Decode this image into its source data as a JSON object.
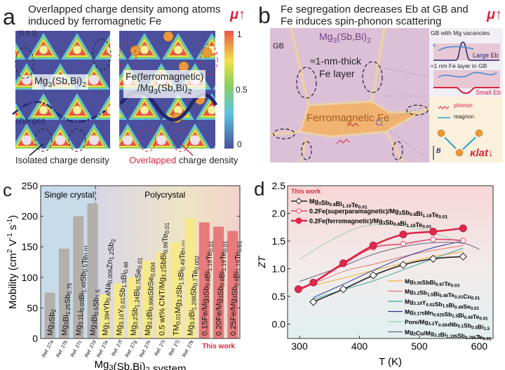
{
  "panel_a": {
    "letter": "a",
    "title_line1": "Overlapped charge density among atoms",
    "title_line2": "induced by ferromagnetic Fe",
    "mu_label": "μ↑",
    "direction": "[0 0 1]",
    "left_label": "Mg3(Sb,Bi)2",
    "right_label_line1": "Fe(ferromagnetic)",
    "right_label_line2": "/Mg3(Sb,Bi)2",
    "charges_label": "charges",
    "colorbar_ticks": [
      "1",
      "0.5",
      "0"
    ],
    "caption_left": "Isolated charge density",
    "caption_right_highlight": "Overlapped",
    "caption_right_rest": " charge density",
    "colors": {
      "background": "#4b4f9c",
      "high": "#e8564a",
      "accent": "#d8243c"
    }
  },
  "panel_b": {
    "letter": "b",
    "title_line1": "Fe segregation decreases Eb at GB and",
    "title_line2": "Fe induces spin-phonon scattering",
    "mu_label": "μ↑",
    "matrix_label": "Mg3(Sb,Bi)2",
    "gb_label": "GB",
    "layer_label_line1": "≈1-nm-thick",
    "layer_label_line2": "Fe layer",
    "fe_label": "Ferromagnetic Fe",
    "inset1_title": "GB with Mg vacancies",
    "inset1_eb": "Large Eb",
    "inset2_title": "≈1 nm Fe layer in GB",
    "inset2_eb": "Small Eb",
    "electron_label": "e",
    "phonon_label": "phonon",
    "magnon_label": "magnon",
    "field_label": "B",
    "klat_label": "κlat↓"
  },
  "chart_data": [
    {
      "panel": "c",
      "type": "bar",
      "ylabel": "Mobility (cm2 V-1 s-1)",
      "xlabel": "Mg3(Sb,Bi)2 system",
      "ylim": [
        0,
        250
      ],
      "yticks": [
        0,
        50,
        100,
        150,
        200,
        250
      ],
      "grid": false,
      "regions": [
        {
          "label": "Single crystal",
          "from": 0,
          "to": 3,
          "color": "#c8dbe8"
        },
        {
          "label": "Polycrystal",
          "from": 4,
          "to": 13,
          "color": "#ece4c8"
        }
      ],
      "categories": [
        {
          "formula": "Mg3Sb2",
          "ref": "Ref. 27a",
          "value": 75,
          "group": "single"
        },
        {
          "formula": "Mg3Bi1.25Sb0.75",
          "ref": "Ref. 27b",
          "value": 147,
          "group": "single"
        },
        {
          "formula": "Mg3.1Li0.03Bi1.49Sb0.5Te0.01",
          "ref": "Ref. 27c",
          "value": 200,
          "group": "single"
        },
        {
          "formula": "Mg3Bi0.5Sb1.5",
          "ref": "Ref. 27d",
          "value": 221,
          "group": "single"
        },
        {
          "formula": "Mg1.394Yb0.4Na0.006Zn1.2Sb2",
          "ref": "Ref. 27e",
          "value": 72,
          "group": "poly"
        },
        {
          "formula": "Mg3.16Y0.01Sb1.5Bi0.48",
          "ref": "Ref. 27f",
          "value": 90,
          "group": "poly"
        },
        {
          "formula": "Mg3.2Sb1.24Bi0.75Se0.01",
          "ref": "Ref. 27g",
          "value": 100,
          "group": "poly"
        },
        {
          "formula": "Mg3.2Bi0.996SbSe0.004",
          "ref": "Ref. 27h",
          "value": 127,
          "group": "poly"
        },
        {
          "formula": "0.5 wt% CNT/Mg3.2SbBi0.99Te0.01",
          "ref": "Ref. 27i",
          "value": 141,
          "group": "poly"
        },
        {
          "formula": "TM0.01Mg3.2Sb1.5Bi0.49Te0.01",
          "ref": "Ref. 27j",
          "value": 158,
          "group": "poly"
        },
        {
          "formula": "Mg3.2Bi1.298Sb0.7Te0.002",
          "ref": "Ref. 27k",
          "value": 197,
          "group": "poly"
        },
        {
          "formula": "0.15Fe/Mg3Sb0.8Bi1.19Te0.01",
          "ref": "",
          "value": 190,
          "group": "this"
        },
        {
          "formula": "0.20Fe/Mg3Sb0.8Bi1.19Te0.01",
          "ref": "",
          "value": 183,
          "group": "this"
        },
        {
          "formula": "0.25Fe/Mg3Sb0.8Bi1.19Te0.01",
          "ref": "",
          "value": 176,
          "group": "this"
        }
      ],
      "this_work_label": "This work",
      "colors": {
        "single": "#b3afab",
        "poly": "#f6e98c",
        "this": "#e67a7c",
        "this_label": "#e0243c"
      }
    },
    {
      "panel": "d",
      "type": "line",
      "xlabel": "T (K)",
      "ylabel": "ZT",
      "xlim": [
        280,
        623
      ],
      "ylim": [
        -0.26,
        2.5
      ],
      "xticks": [
        300,
        400,
        500,
        600
      ],
      "yticks": [
        0.0,
        0.5,
        1.0,
        1.5,
        2.0,
        2.5
      ],
      "grid": false,
      "legend_title": "This work",
      "legend_placement": "top-left / bottom-right",
      "series": [
        {
          "name": "Mg3Sb0.8Bi1.19Te0.01",
          "color": "#222222",
          "marker": "diamond-open",
          "this_work": true,
          "x": [
            323,
            373,
            423,
            473,
            523,
            573
          ],
          "y": [
            0.4,
            0.63,
            0.88,
            1.07,
            1.18,
            1.22
          ]
        },
        {
          "name": "0.2Fe(superparamagnetic)/Mg3Sb0.8Bi1.19Te0.01",
          "color": "#e0486a",
          "marker": "circle-open",
          "this_work": true,
          "x": [
            298,
            323,
            373,
            423,
            473,
            523,
            573
          ],
          "y": [
            0.61,
            0.74,
            1.08,
            1.38,
            1.45,
            1.53,
            1.51
          ]
        },
        {
          "name": "0.2Fe(ferromagnetic)/Mg3Sb0.8Bi1.19Te0.01",
          "color": "#e0284c",
          "marker": "circle-filled",
          "this_work": true,
          "x": [
            298,
            323,
            373,
            423,
            473,
            523,
            573
          ],
          "y": [
            0.63,
            0.75,
            1.1,
            1.42,
            1.62,
            1.67,
            1.73
          ]
        },
        {
          "name": "Mg3.05SbBi0.97Te0.03",
          "color": "#f0b030",
          "marker": "none",
          "x": [
            323,
            373,
            423,
            473,
            523,
            573
          ],
          "y": [
            0.7,
            0.83,
            0.97,
            1.1,
            1.22,
            1.31
          ]
        },
        {
          "name": "Mg3.2Sb1.5Bi0.49Te0.01Cu0.01",
          "color": "#e07870",
          "marker": "none",
          "x": [
            300,
            373,
            423,
            473,
            523,
            573
          ],
          "y": [
            0.62,
            0.95,
            1.08,
            1.22,
            1.33,
            1.42
          ]
        },
        {
          "name": "Mg3.19Y0.02Sb1.5Bi0.49Se0.01",
          "color": "#40a8a0",
          "marker": "none",
          "x": [
            323,
            373,
            423,
            473,
            523,
            573
          ],
          "y": [
            0.45,
            0.62,
            0.78,
            0.98,
            1.18,
            1.37
          ]
        },
        {
          "name": "Mg3.175Mn0.025Sb1.5Bi0.49Te0.01",
          "color": "#2a3a8c",
          "marker": "none",
          "x": [
            323,
            373,
            423,
            473,
            523,
            573
          ],
          "y": [
            0.48,
            0.72,
            0.97,
            1.2,
            1.38,
            1.5
          ]
        },
        {
          "name": "Pore/Mg3.2Y0.004Nb0.1Sb0.5Bi1.5",
          "color": "#9ad0b0",
          "marker": "none",
          "x": [
            300,
            350,
            400,
            450,
            500,
            550,
            573
          ],
          "y": [
            1.17,
            1.5,
            1.75,
            1.8,
            1.72,
            1.55,
            1.45
          ]
        },
        {
          "name": "Mg2Cu/Mg3.2Bi1.195Sb0.795Te0.01",
          "color": "#6a6080",
          "marker": "none",
          "x": [
            300,
            373,
            423,
            473,
            523,
            573,
            600
          ],
          "y": [
            0.77,
            1.05,
            1.26,
            1.4,
            1.47,
            1.46,
            1.35
          ]
        }
      ]
    }
  ],
  "panel_c_letter": "c",
  "panel_d_letter": "d"
}
